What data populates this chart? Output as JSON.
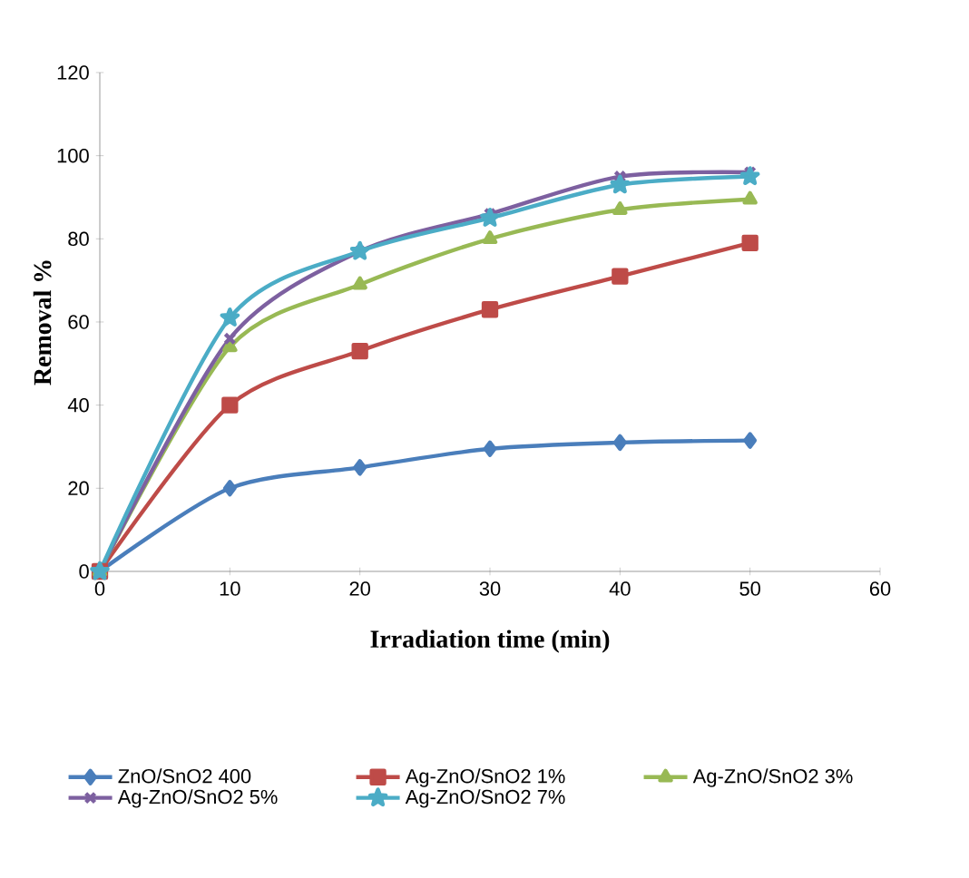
{
  "chart_data": {
    "type": "line",
    "xlabel": "Irradiation time (min)",
    "ylabel": "Removal %",
    "x": [
      0,
      10,
      20,
      30,
      40,
      50
    ],
    "series": [
      {
        "name": "ZnO/SnO2  400",
        "color": "#4a7ebb",
        "marker": "diamond",
        "values": [
          0,
          20,
          25,
          29.5,
          31,
          31.5
        ]
      },
      {
        "name": "Ag-ZnO/SnO2  1%",
        "color": "#be4b48",
        "marker": "square",
        "values": [
          0,
          40,
          53,
          63,
          71,
          79
        ]
      },
      {
        "name": "Ag-ZnO/SnO2  3%",
        "color": "#98b954",
        "marker": "triangle",
        "values": [
          0,
          54,
          69,
          80,
          87,
          89.5
        ]
      },
      {
        "name": "Ag-ZnO/SnO2  5%",
        "color": "#7d60a0",
        "marker": "cross",
        "values": [
          0,
          56,
          77,
          86,
          95,
          96
        ]
      },
      {
        "name": "Ag-ZnO/SnO2  7%",
        "color": "#4bacc6",
        "marker": "star",
        "values": [
          0,
          61,
          77,
          85,
          93,
          95
        ]
      }
    ],
    "xlim": [
      0,
      60
    ],
    "ylim": [
      0,
      120
    ],
    "xticks": [
      0,
      10,
      20,
      30,
      40,
      50,
      60
    ],
    "yticks": [
      0,
      20,
      40,
      60,
      80,
      100,
      120
    ],
    "grid": false,
    "legend": "bottom"
  }
}
